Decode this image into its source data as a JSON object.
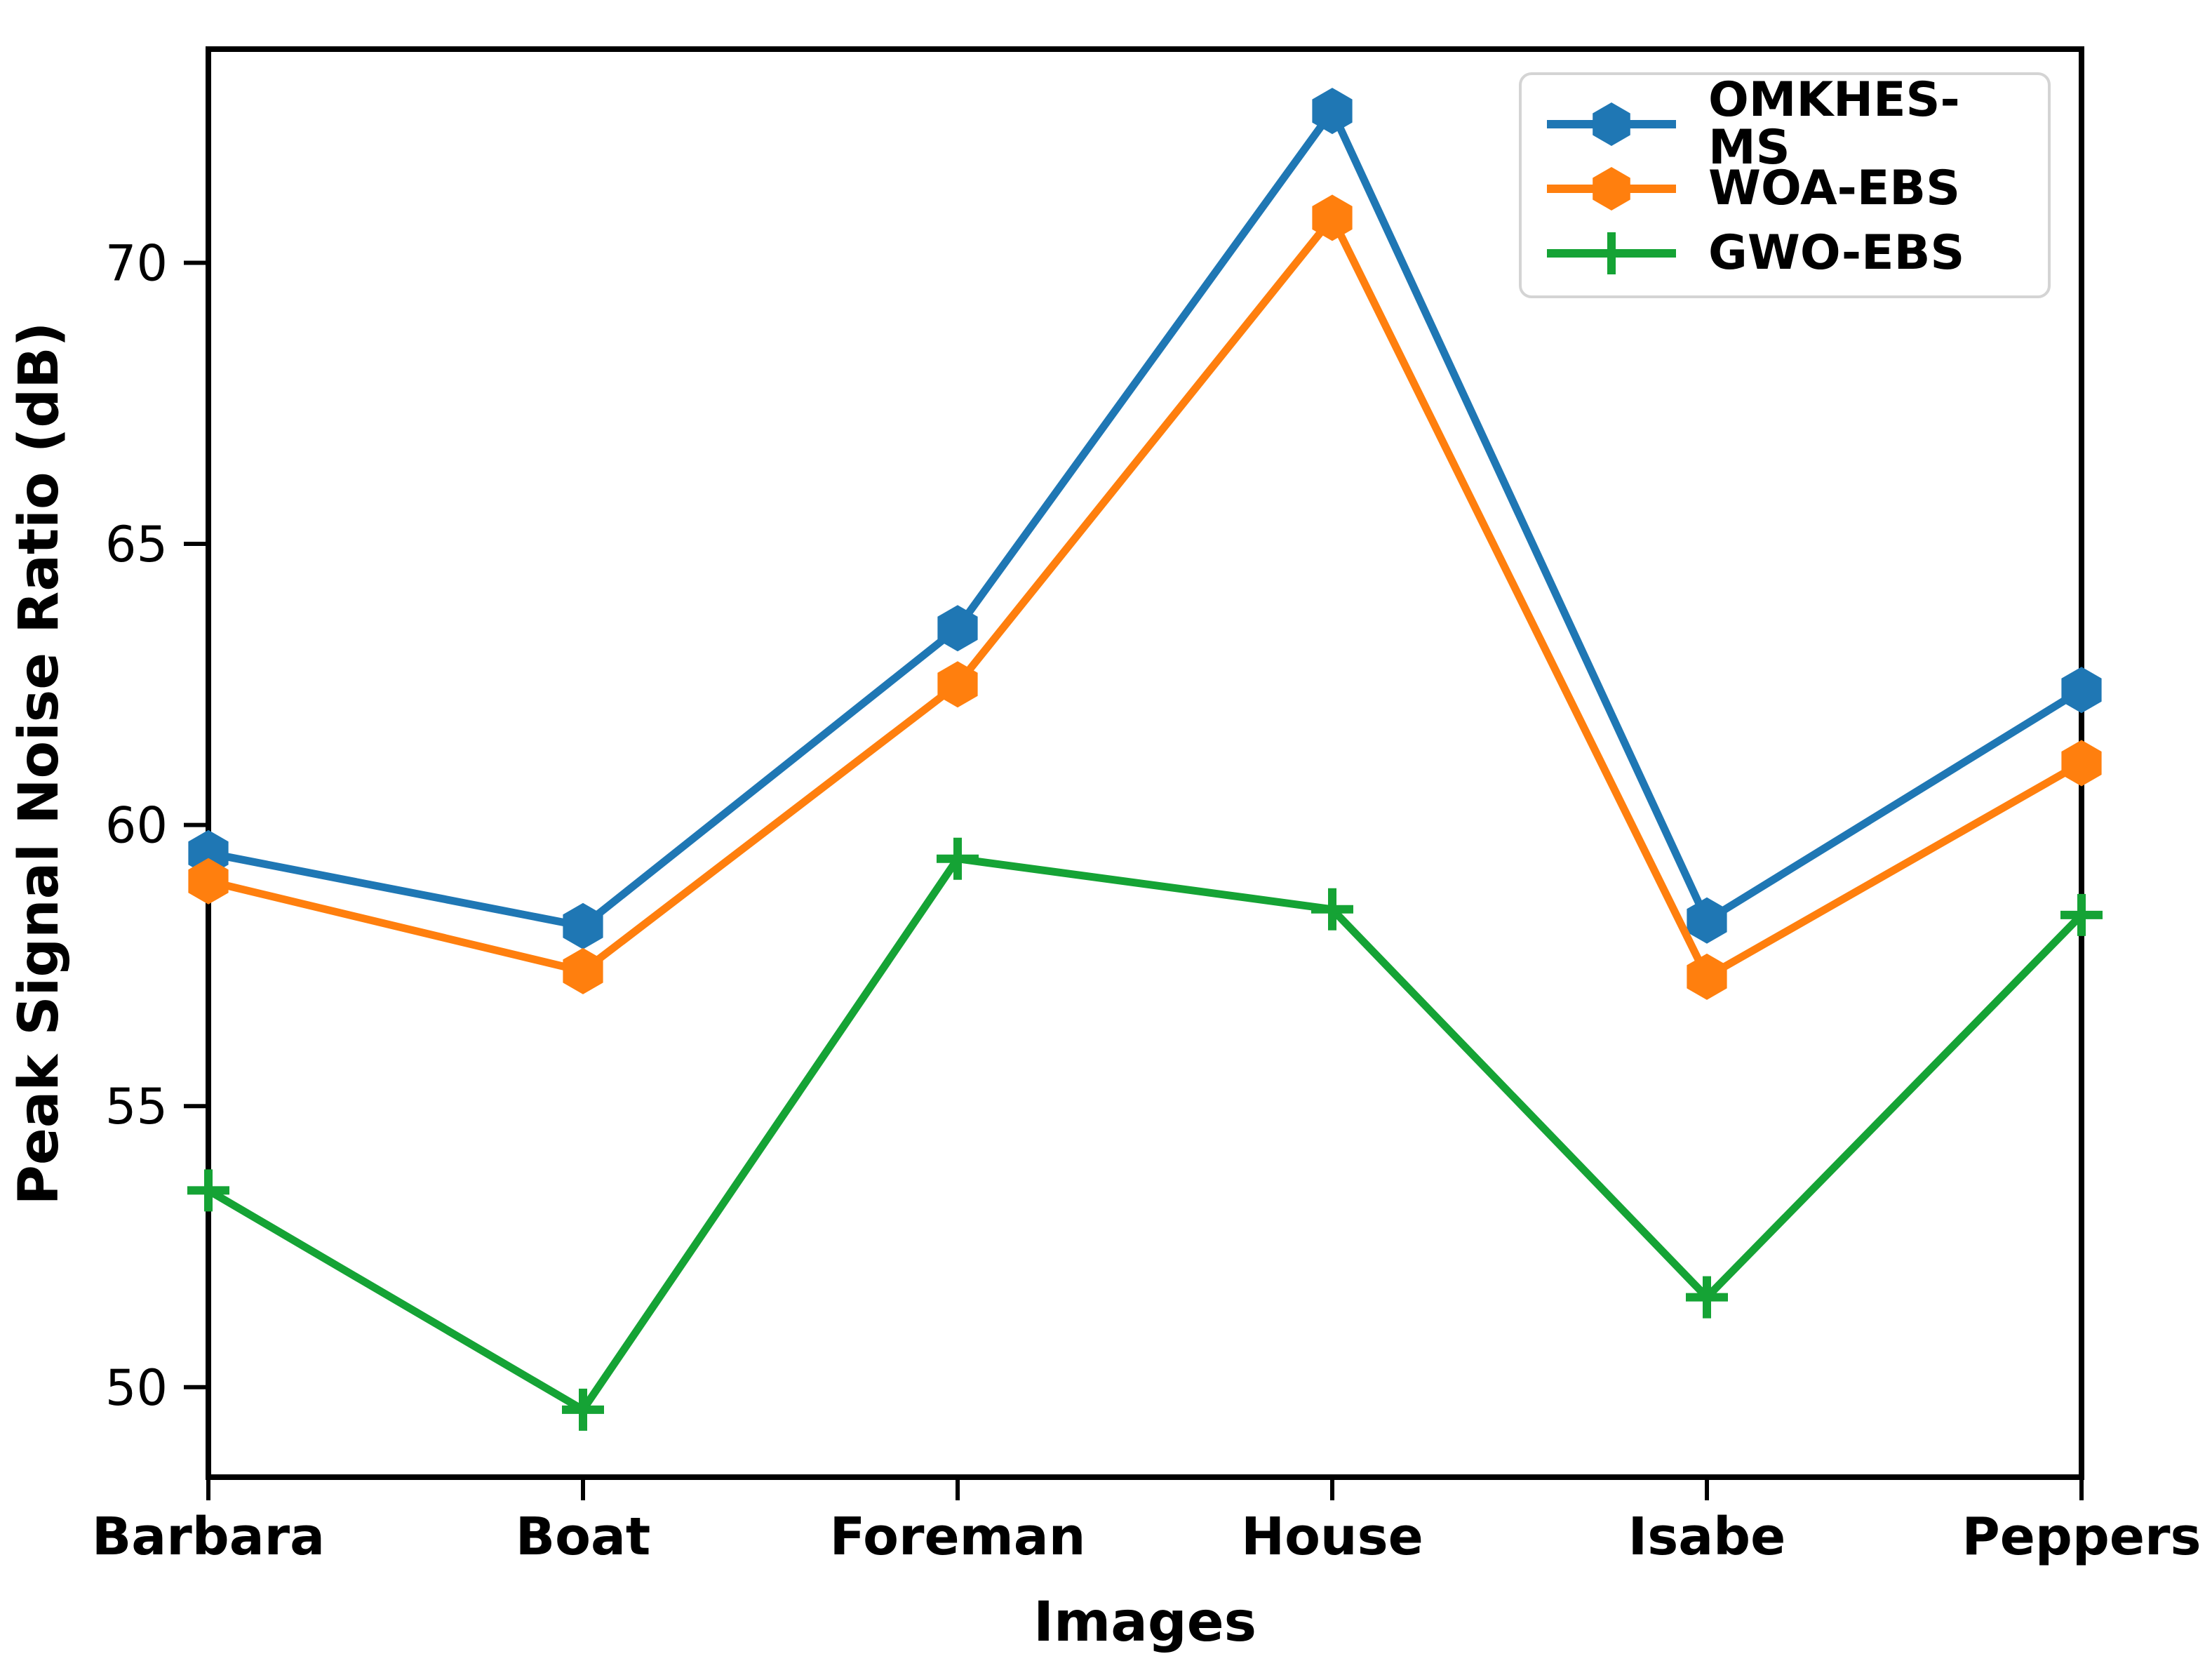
{
  "chart_data": {
    "type": "line",
    "title": "",
    "xlabel": "Images",
    "ylabel": "Peak Signal Noise Ratio (dB)",
    "categories": [
      "Barbara",
      "Boat",
      "Foreman",
      "House",
      "Isabe",
      "Peppers"
    ],
    "yticks": [
      50,
      55,
      60,
      65,
      70
    ],
    "ylim": [
      48.4,
      73.8
    ],
    "grid": false,
    "legend_position": "upper right",
    "axis_color": "#000000",
    "legend_border_color": "#d4d4d4",
    "series": [
      {
        "name": "OMKHES-MS",
        "color": "#1f77b4",
        "marker": "hexagon",
        "values": [
          59.5,
          58.2,
          63.5,
          72.7,
          58.3,
          62.4
        ]
      },
      {
        "name": "WOA-EBS",
        "color": "#ff7f0e",
        "marker": "hexagon",
        "values": [
          59.0,
          57.4,
          62.5,
          70.8,
          57.3,
          61.1
        ]
      },
      {
        "name": "GWO-EBS",
        "color": "#15a335",
        "marker": "plus",
        "values": [
          53.5,
          49.6,
          59.4,
          58.5,
          51.6,
          58.4
        ]
      }
    ]
  }
}
